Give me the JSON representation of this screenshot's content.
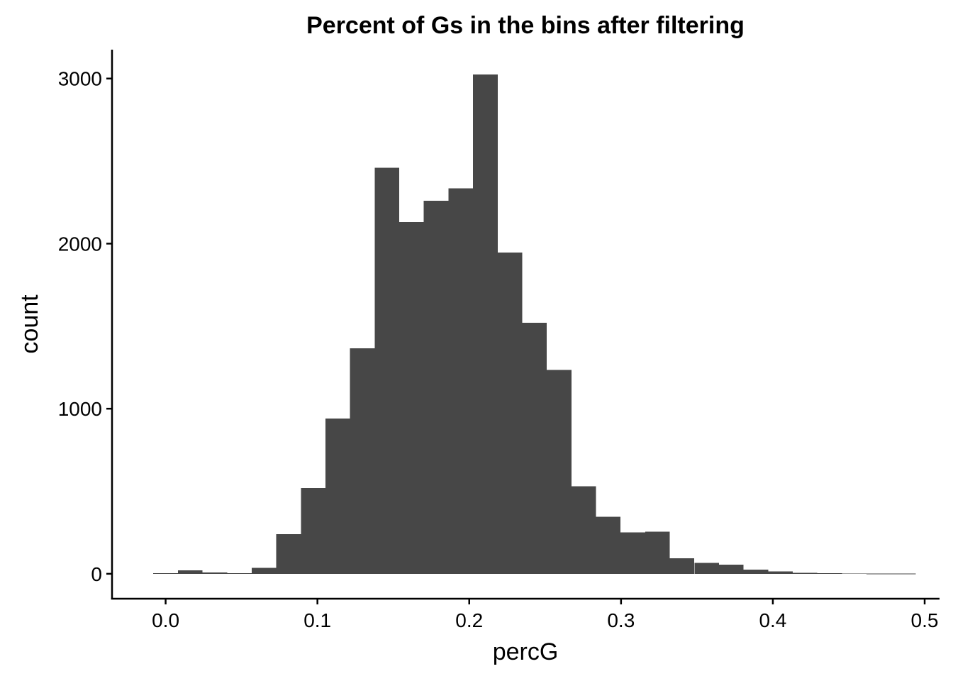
{
  "chart_data": {
    "type": "bar",
    "title": "Percent of Gs in the bins after filtering",
    "xlabel": "percG",
    "ylabel": "count",
    "bar_color": "#474747",
    "bins": [
      {
        "x0": -0.0081,
        "x1": 0.0081,
        "count": 3
      },
      {
        "x0": 0.0081,
        "x1": 0.0243,
        "count": 20
      },
      {
        "x0": 0.0243,
        "x1": 0.0405,
        "count": 8
      },
      {
        "x0": 0.0405,
        "x1": 0.0567,
        "count": 4
      },
      {
        "x0": 0.0567,
        "x1": 0.0729,
        "count": 35
      },
      {
        "x0": 0.0729,
        "x1": 0.0891,
        "count": 240
      },
      {
        "x0": 0.0891,
        "x1": 0.1053,
        "count": 520
      },
      {
        "x0": 0.1053,
        "x1": 0.1215,
        "count": 940
      },
      {
        "x0": 0.1215,
        "x1": 0.1377,
        "count": 1365
      },
      {
        "x0": 0.1377,
        "x1": 0.1539,
        "count": 2460
      },
      {
        "x0": 0.1539,
        "x1": 0.1701,
        "count": 2130
      },
      {
        "x0": 0.1701,
        "x1": 0.1863,
        "count": 2260
      },
      {
        "x0": 0.1863,
        "x1": 0.2025,
        "count": 2335
      },
      {
        "x0": 0.2025,
        "x1": 0.2187,
        "count": 3025
      },
      {
        "x0": 0.2187,
        "x1": 0.2349,
        "count": 1945
      },
      {
        "x0": 0.2349,
        "x1": 0.2511,
        "count": 1520
      },
      {
        "x0": 0.2511,
        "x1": 0.2673,
        "count": 1235
      },
      {
        "x0": 0.2673,
        "x1": 0.2835,
        "count": 530
      },
      {
        "x0": 0.2835,
        "x1": 0.2997,
        "count": 345
      },
      {
        "x0": 0.2997,
        "x1": 0.3159,
        "count": 250
      },
      {
        "x0": 0.3159,
        "x1": 0.3321,
        "count": 255
      },
      {
        "x0": 0.3321,
        "x1": 0.3483,
        "count": 95
      },
      {
        "x0": 0.3483,
        "x1": 0.3645,
        "count": 65
      },
      {
        "x0": 0.3645,
        "x1": 0.3807,
        "count": 55
      },
      {
        "x0": 0.3807,
        "x1": 0.3969,
        "count": 25
      },
      {
        "x0": 0.3969,
        "x1": 0.4131,
        "count": 15
      },
      {
        "x0": 0.4131,
        "x1": 0.4293,
        "count": 6
      },
      {
        "x0": 0.4293,
        "x1": 0.4455,
        "count": 4
      },
      {
        "x0": 0.4455,
        "x1": 0.4617,
        "count": 2
      },
      {
        "x0": 0.4617,
        "x1": 0.4779,
        "count": 1
      },
      {
        "x0": 0.4779,
        "x1": 0.4941,
        "count": 1
      }
    ],
    "xlim": [
      -0.0353,
      0.5098
    ],
    "ylim": [
      -151,
      3175
    ],
    "xticks": [
      0.0,
      0.1,
      0.2,
      0.3,
      0.4,
      0.5
    ],
    "xtick_labels": [
      "0.0",
      "0.1",
      "0.2",
      "0.3",
      "0.4",
      "0.5"
    ],
    "yticks": [
      0,
      1000,
      2000,
      3000
    ],
    "ytick_labels": [
      "0",
      "1000",
      "2000",
      "3000"
    ],
    "grid": false,
    "legend": "none"
  }
}
